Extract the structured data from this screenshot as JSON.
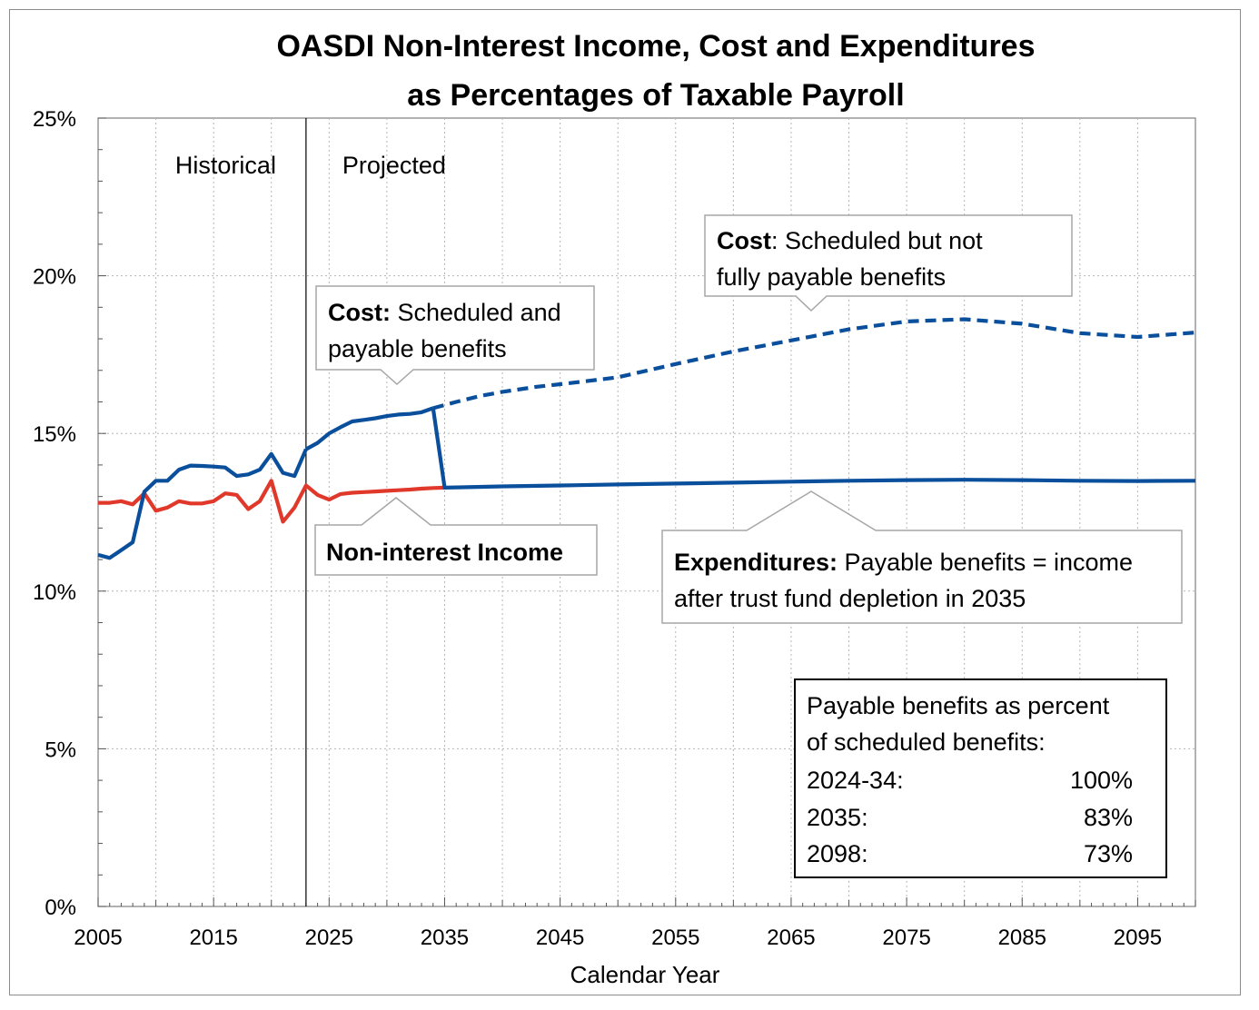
{
  "chart_data": {
    "type": "line",
    "title_lines": [
      "OASDI Non-Interest Income, Cost and Expenditures",
      "as Percentages of Taxable Payroll"
    ],
    "xlabel": "Calendar Year",
    "ylabel": "",
    "xlim": [
      2005,
      2100
    ],
    "ylim": [
      0,
      25
    ],
    "x_ticks": [
      2005,
      2015,
      2025,
      2035,
      2045,
      2055,
      2065,
      2075,
      2085,
      2095
    ],
    "y_ticks": [
      {
        "value": 0,
        "label": "0%"
      },
      {
        "value": 5,
        "label": "5%"
      },
      {
        "value": 10,
        "label": "10%"
      },
      {
        "value": 15,
        "label": "15%"
      },
      {
        "value": 20,
        "label": "20%"
      },
      {
        "value": 25,
        "label": "25%"
      }
    ],
    "minor_y_step": 1,
    "grid": true,
    "divider_year": 2023,
    "era_labels": {
      "historical": "Historical",
      "projected": "Projected"
    },
    "series": [
      {
        "key": "income",
        "color": "#e0392b",
        "style": "solid",
        "x": [
          2005,
          2006,
          2007,
          2008,
          2009,
          2010,
          2011,
          2012,
          2013,
          2014,
          2015,
          2016,
          2017,
          2018,
          2019,
          2020,
          2021,
          2022,
          2023,
          2024,
          2025,
          2026,
          2027,
          2028,
          2029,
          2030,
          2031,
          2032,
          2033,
          2034,
          2035
        ],
        "values": [
          12.8,
          12.8,
          12.85,
          12.75,
          13.1,
          12.55,
          12.65,
          12.85,
          12.78,
          12.78,
          12.85,
          13.1,
          13.05,
          12.6,
          12.85,
          13.5,
          12.2,
          12.65,
          13.35,
          13.05,
          12.9,
          13.08,
          13.12,
          13.14,
          13.16,
          13.18,
          13.2,
          13.22,
          13.25,
          13.27,
          13.28
        ]
      },
      {
        "key": "cost_historical",
        "color": "#0a4f9c",
        "style": "solid",
        "x": [
          2005,
          2006,
          2007,
          2008,
          2009,
          2010,
          2011,
          2012,
          2013,
          2014,
          2015,
          2016,
          2017,
          2018,
          2019,
          2020,
          2021,
          2022,
          2023
        ],
        "values": [
          11.15,
          11.05,
          11.3,
          11.55,
          13.15,
          13.5,
          13.5,
          13.85,
          13.98,
          13.97,
          13.95,
          13.92,
          13.65,
          13.7,
          13.85,
          14.35,
          13.75,
          13.65,
          14.5
        ]
      },
      {
        "key": "cost_scheduled_payable",
        "color": "#0a4f9c",
        "style": "solid",
        "x": [
          2023,
          2024,
          2025,
          2026,
          2027,
          2028,
          2029,
          2030,
          2031,
          2032,
          2033,
          2034
        ],
        "values": [
          14.5,
          14.7,
          15.0,
          15.2,
          15.38,
          15.43,
          15.48,
          15.55,
          15.6,
          15.62,
          15.67,
          15.8
        ]
      },
      {
        "key": "cost_scheduled_not_payable",
        "color": "#0a4f9c",
        "style": "dashed",
        "x": [
          2034,
          2036,
          2038,
          2040,
          2043,
          2046,
          2050,
          2055,
          2060,
          2065,
          2070,
          2075,
          2080,
          2085,
          2090,
          2095,
          2100
        ],
        "values": [
          15.8,
          16.0,
          16.18,
          16.32,
          16.48,
          16.6,
          16.78,
          17.2,
          17.6,
          17.95,
          18.3,
          18.55,
          18.62,
          18.48,
          18.18,
          18.06,
          18.2
        ]
      },
      {
        "key": "expenditures",
        "color": "#0a4f9c",
        "style": "solid",
        "x": [
          2034,
          2035,
          2040,
          2045,
          2050,
          2055,
          2060,
          2065,
          2070,
          2075,
          2080,
          2085,
          2090,
          2095,
          2100
        ],
        "values": [
          15.8,
          13.28,
          13.32,
          13.35,
          13.38,
          13.41,
          13.44,
          13.47,
          13.5,
          13.52,
          13.53,
          13.52,
          13.5,
          13.49,
          13.5
        ]
      }
    ],
    "callouts": [
      {
        "key": "cost_payable",
        "bold": "Cost:",
        "text_line1": " Scheduled and",
        "text_line2": "payable benefits"
      },
      {
        "key": "cost_not_payable",
        "bold": "Cost",
        "text_line1": ": Scheduled but not",
        "text_line2": "fully payable benefits"
      },
      {
        "key": "income",
        "bold": "Non-interest Income",
        "text_line1": "",
        "text_line2": ""
      },
      {
        "key": "expenditures",
        "bold": "Expenditures:",
        "text_line1": " Payable benefits = income",
        "text_line2": "after trust fund depletion in 2035"
      }
    ],
    "payable_table": {
      "heading_line1": "Payable benefits as percent",
      "heading_line2": "of scheduled benefits:",
      "rows": [
        {
          "period": "2024-34:",
          "value": "100%"
        },
        {
          "period": "2035:",
          "value": "83%"
        },
        {
          "period": "2098:",
          "value": "73%"
        }
      ]
    }
  }
}
